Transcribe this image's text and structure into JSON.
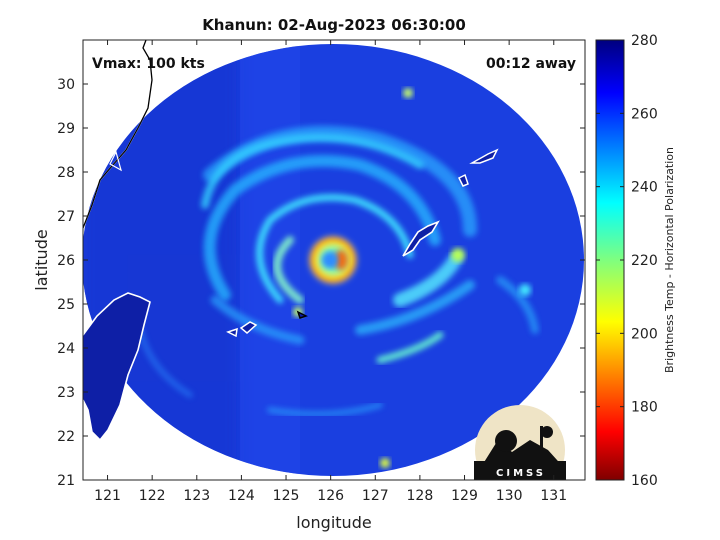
{
  "chart_data": {
    "type": "heatmap",
    "title": "Khanun: 02-Aug-2023 06:30:00",
    "xlabel": "longitude",
    "ylabel": "latitude",
    "xlim": [
      120.45,
      131.7
    ],
    "ylim": [
      21.0,
      31.0
    ],
    "xticks": [
      121,
      122,
      123,
      124,
      125,
      126,
      127,
      128,
      129,
      130,
      131
    ],
    "yticks": [
      21,
      22,
      23,
      24,
      25,
      26,
      27,
      28,
      29,
      30
    ],
    "annotations": {
      "left": "Vmax: 100 kts",
      "right": "00:12 away"
    },
    "colorbar": {
      "label": "Brightness Temp - Horizontal Polarization",
      "range": [
        160,
        280
      ],
      "ticks": [
        160,
        180,
        200,
        220,
        240,
        260,
        280
      ],
      "colormap": "jet"
    },
    "storm_center": {
      "lon": 126.1,
      "lat": 26.0
    },
    "swath_radius_deg_lat": 4.9,
    "field_description_values": {
      "background_tb": 262,
      "eye_tb": 220,
      "eyewall_tb": 200,
      "spiral_band_tb": 238
    },
    "logo_text": "CIMSS"
  }
}
